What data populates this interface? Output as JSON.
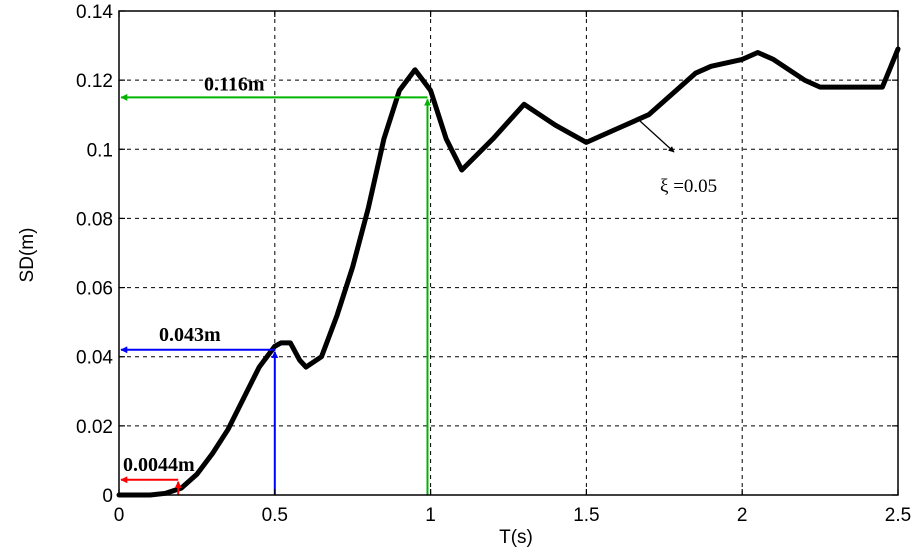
{
  "chart_data": {
    "type": "line",
    "title": "",
    "xlabel": "T(s)",
    "ylabel": "SD(m)",
    "xlim": [
      0,
      2.5
    ],
    "ylim": [
      0,
      0.14
    ],
    "grid": true,
    "xticks": [
      0,
      0.5,
      1,
      1.5,
      2,
      2.5
    ],
    "yticks": [
      0,
      0.02,
      0.04,
      0.06,
      0.08,
      0.1,
      0.12,
      0.14
    ],
    "xtick_labels": [
      "0",
      "0.5",
      "1",
      "1.5",
      "2",
      "2.5"
    ],
    "ytick_labels": [
      "0",
      "0.02",
      "0.04",
      "0.06",
      "0.08",
      "0.1",
      "0.12",
      "0.14"
    ],
    "series": [
      {
        "name": "",
        "color": "#000000",
        "x": [
          0,
          0.1,
          0.15,
          0.2,
          0.25,
          0.3,
          0.35,
          0.4,
          0.45,
          0.5,
          0.52,
          0.55,
          0.58,
          0.6,
          0.65,
          0.7,
          0.75,
          0.8,
          0.85,
          0.9,
          0.95,
          1.0,
          1.05,
          1.1,
          1.2,
          1.3,
          1.4,
          1.5,
          1.6,
          1.7,
          1.8,
          1.85,
          1.9,
          2.0,
          2.05,
          2.1,
          2.2,
          2.25,
          2.3,
          2.4,
          2.45,
          2.5
        ],
        "y": [
          0,
          0,
          0.0005,
          0.002,
          0.006,
          0.012,
          0.019,
          0.028,
          0.037,
          0.043,
          0.044,
          0.044,
          0.039,
          0.037,
          0.04,
          0.052,
          0.066,
          0.083,
          0.103,
          0.117,
          0.123,
          0.117,
          0.103,
          0.094,
          0.103,
          0.113,
          0.107,
          0.102,
          0.106,
          0.11,
          0.118,
          0.122,
          0.124,
          0.126,
          0.128,
          0.126,
          0.12,
          0.118,
          0.118,
          0.118,
          0.118,
          0.129
        ]
      }
    ],
    "annotations": [
      {
        "id": "green",
        "text": "0.116m",
        "color": "#00b400",
        "x": 0.99,
        "y": 0.115
      },
      {
        "id": "blue",
        "text": "0.043m",
        "color": "#0000ff",
        "x": 0.5,
        "y": 0.042
      },
      {
        "id": "red",
        "text": "0.0044m",
        "color": "#ff0000",
        "x": 0.19,
        "y": 0.0044
      }
    ],
    "damping_label": "ξ =0.05"
  }
}
